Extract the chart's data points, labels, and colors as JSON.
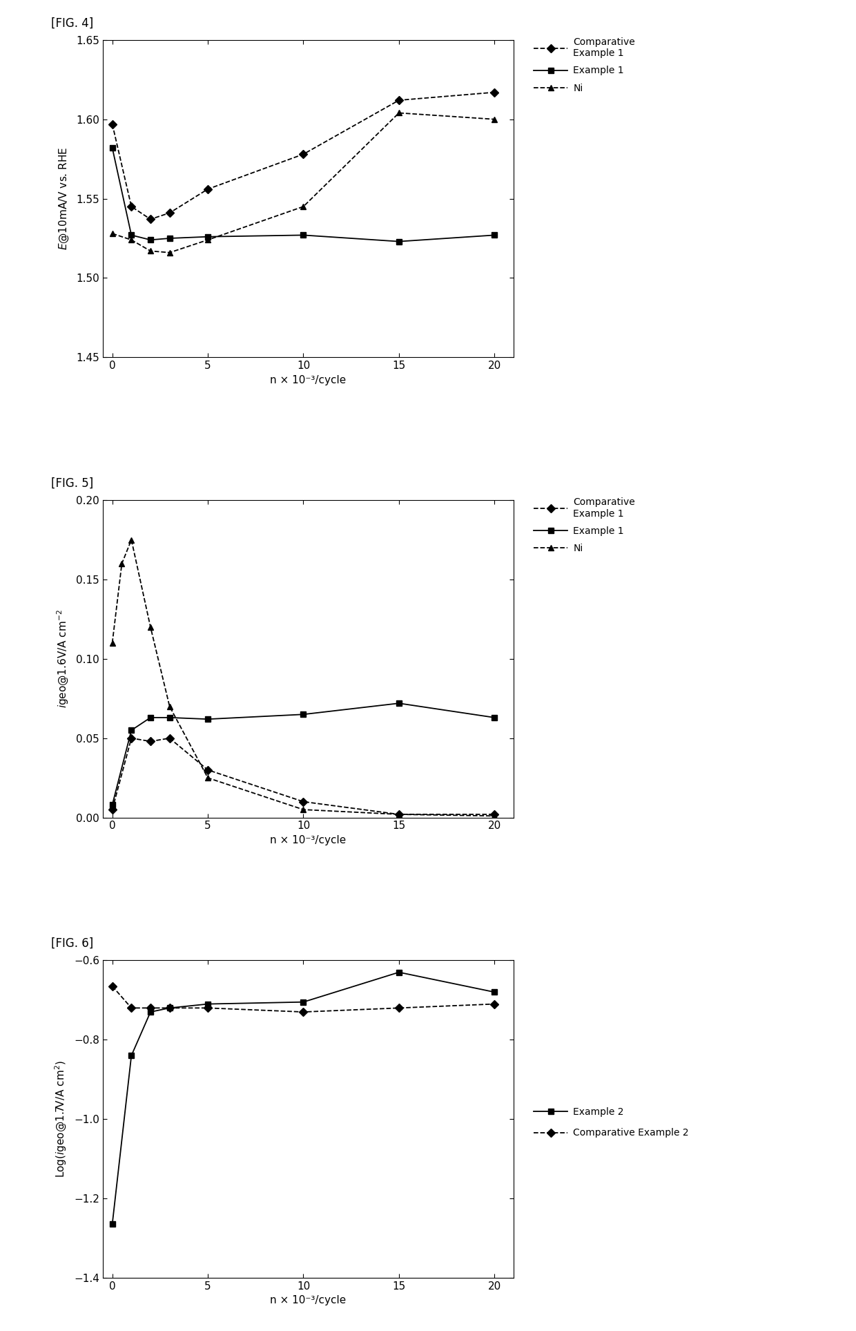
{
  "fig4": {
    "label": "[FIG. 4]",
    "ylabel": "$E$@10mA/V vs. RHE",
    "xlabel": "n × 10⁻³/cycle",
    "ylim": [
      1.45,
      1.65
    ],
    "yticks": [
      1.45,
      1.5,
      1.55,
      1.6,
      1.65
    ],
    "xlim": [
      -0.5,
      21
    ],
    "xticks": [
      0,
      5,
      10,
      15,
      20
    ],
    "series": [
      {
        "label": "Comparative\nExample 1",
        "x": [
          0,
          1,
          2,
          3,
          5,
          10,
          15,
          20
        ],
        "y": [
          1.597,
          1.545,
          1.537,
          1.541,
          1.556,
          1.578,
          1.612,
          1.617
        ],
        "linestyle": "--",
        "marker": "D",
        "markersize": 6
      },
      {
        "label": "Example 1",
        "x": [
          0,
          1,
          2,
          3,
          5,
          10,
          15,
          20
        ],
        "y": [
          1.582,
          1.527,
          1.524,
          1.525,
          1.526,
          1.527,
          1.523,
          1.527
        ],
        "linestyle": "-",
        "marker": "s",
        "markersize": 6
      },
      {
        "label": "Ni",
        "x": [
          0,
          1,
          2,
          3,
          5,
          10,
          15,
          20
        ],
        "y": [
          1.528,
          1.524,
          1.517,
          1.516,
          1.524,
          1.545,
          1.604,
          1.6
        ],
        "linestyle": "--",
        "marker": "^",
        "markersize": 6
      }
    ]
  },
  "fig5": {
    "label": "[FIG. 5]",
    "ylabel": "$i$geo@1.6V/A cm$^{-2}$",
    "xlabel": "n × 10⁻³/cycle",
    "ylim": [
      0,
      0.2
    ],
    "yticks": [
      0,
      0.05,
      0.1,
      0.15,
      0.2
    ],
    "xlim": [
      -0.5,
      21
    ],
    "xticks": [
      0,
      5,
      10,
      15,
      20
    ],
    "series": [
      {
        "label": "Comparative\nExample 1",
        "x": [
          0,
          1,
          2,
          3,
          5,
          10,
          15,
          20
        ],
        "y": [
          0.005,
          0.05,
          0.048,
          0.05,
          0.03,
          0.01,
          0.002,
          0.002
        ],
        "linestyle": "--",
        "marker": "D",
        "markersize": 6
      },
      {
        "label": "Example 1",
        "x": [
          0,
          1,
          2,
          3,
          5,
          10,
          15,
          20
        ],
        "y": [
          0.008,
          0.055,
          0.063,
          0.063,
          0.062,
          0.065,
          0.072,
          0.063
        ],
        "linestyle": "-",
        "marker": "s",
        "markersize": 6
      },
      {
        "label": "Ni",
        "x": [
          0,
          0.5,
          1,
          2,
          3,
          5,
          10,
          15,
          20
        ],
        "y": [
          0.11,
          0.16,
          0.175,
          0.12,
          0.07,
          0.025,
          0.005,
          0.002,
          0.001
        ],
        "linestyle": "--",
        "marker": "^",
        "markersize": 6
      }
    ]
  },
  "fig6": {
    "label": "[FIG. 6]",
    "ylabel": "Log($i$geo@1.7V/A cm$^2$)",
    "xlabel": "n × 10⁻³/cycle",
    "ylim": [
      -1.4,
      -0.6
    ],
    "yticks": [
      -1.4,
      -1.2,
      -1.0,
      -0.8,
      -0.6
    ],
    "xlim": [
      -0.5,
      21
    ],
    "xticks": [
      0,
      5,
      10,
      15,
      20
    ],
    "series": [
      {
        "label": "Example 2",
        "x": [
          0,
          1,
          2,
          3,
          5,
          10,
          15,
          20
        ],
        "y": [
          -1.265,
          -0.84,
          -0.73,
          -0.72,
          -0.71,
          -0.705,
          -0.63,
          -0.68
        ],
        "linestyle": "-",
        "marker": "s",
        "markersize": 6
      },
      {
        "label": "Comparative Example 2",
        "x": [
          0,
          1,
          2,
          3,
          5,
          10,
          15,
          20
        ],
        "y": [
          -0.665,
          -0.72,
          -0.72,
          -0.72,
          -0.72,
          -0.73,
          -0.72,
          -0.71
        ],
        "linestyle": "--",
        "marker": "D",
        "markersize": 6
      }
    ]
  }
}
